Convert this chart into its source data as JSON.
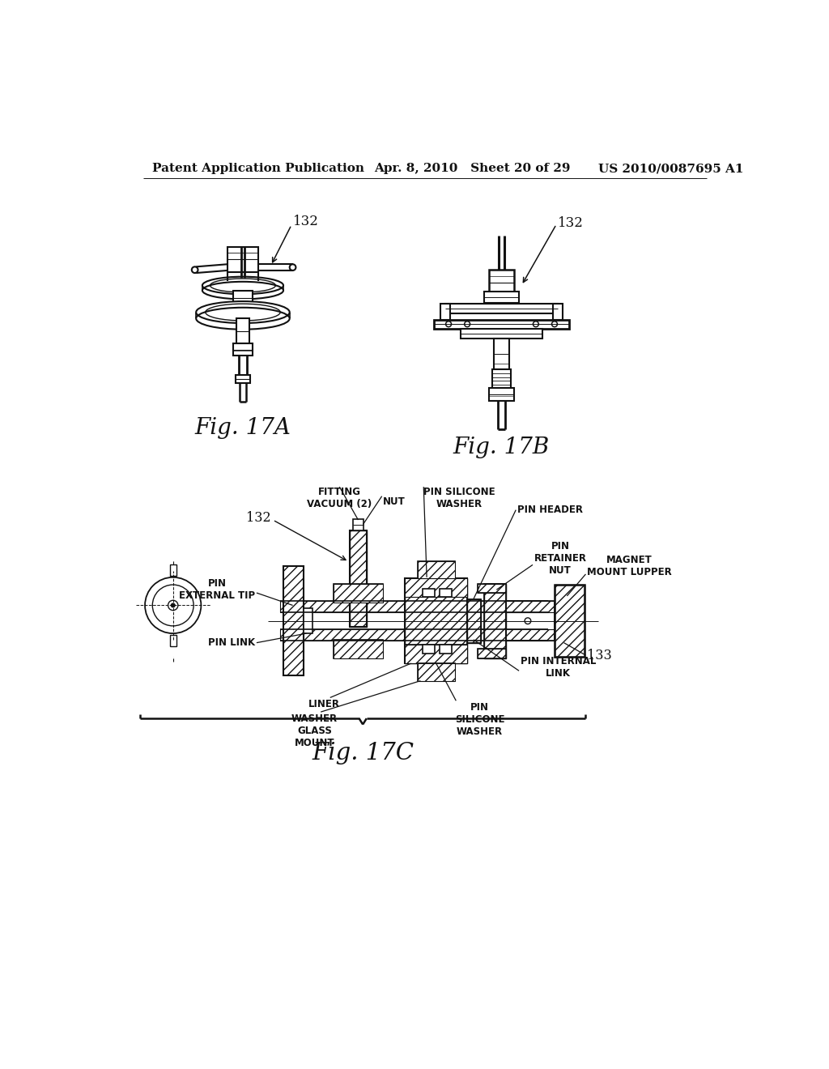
{
  "background_color": "#ffffff",
  "header_left": "Patent Application Publication",
  "header_center": "Apr. 8, 2010   Sheet 20 of 29",
  "header_right": "US 2010/0087695 A1",
  "fig17a_label": "Fig. 17A",
  "fig17b_label": "Fig. 17B",
  "fig17c_label": "Fig. 17C",
  "ref_132a": "132",
  "ref_132b": "132",
  "ref_132c": "132",
  "ref_133": "133",
  "label_fitting_vacuum": "FITTING\nVACUUM (2)",
  "label_nut": "NUT",
  "label_pin_silicone_washer_top": "PIN SILICONE\nWASHER",
  "label_pin_header": "PIN HEADER",
  "label_pin_external_tip": "PIN\nEXTERNAL TIP",
  "label_pin_retainer_nut": "PIN\nRETAINER\nNUT",
  "label_magnet_mount": "MAGNET\nMOUNT LUPPER",
  "label_pin_link": "PIN LINK",
  "label_liner": "LINER",
  "label_pin_internal_link": "PIN INTERNAL\nLINK",
  "label_pin_silicone_washer_bot": "PIN\nSILICONE\nWASHER",
  "label_washer_glass_mount": "WASHER\nGLASS\nMOUNT",
  "text_color": "#111111",
  "line_color": "#111111",
  "fig_label_fontsize": 20,
  "header_fontsize": 11,
  "annotation_fontsize": 8.5
}
